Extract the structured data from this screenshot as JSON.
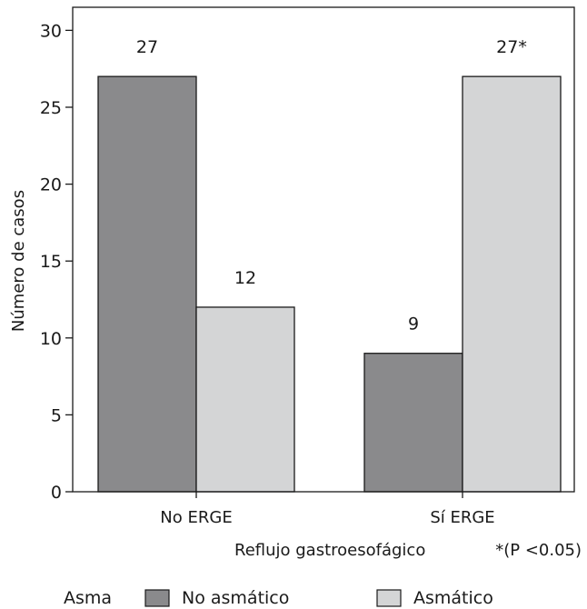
{
  "chart_data": {
    "type": "bar",
    "title": "",
    "xlabel": "Reflujo gastroesofágico",
    "ylabel": "Número de casos",
    "ylim": [
      0,
      30
    ],
    "yticks": [
      0,
      5,
      10,
      15,
      20,
      25,
      30
    ],
    "grid": false,
    "categories": [
      "No ERGE",
      "Sí ERGE"
    ],
    "series": [
      {
        "name": "No asmático",
        "values": [
          27,
          9
        ],
        "labels": [
          "27",
          "9"
        ],
        "color": "#8a8a8c"
      },
      {
        "name": "Asmático",
        "values": [
          12,
          27
        ],
        "labels": [
          "12",
          "27*"
        ],
        "color": "#d4d5d6"
      }
    ],
    "note": "*(P <0.05)",
    "legend": {
      "title": "Asma",
      "placement": "bottom"
    }
  }
}
